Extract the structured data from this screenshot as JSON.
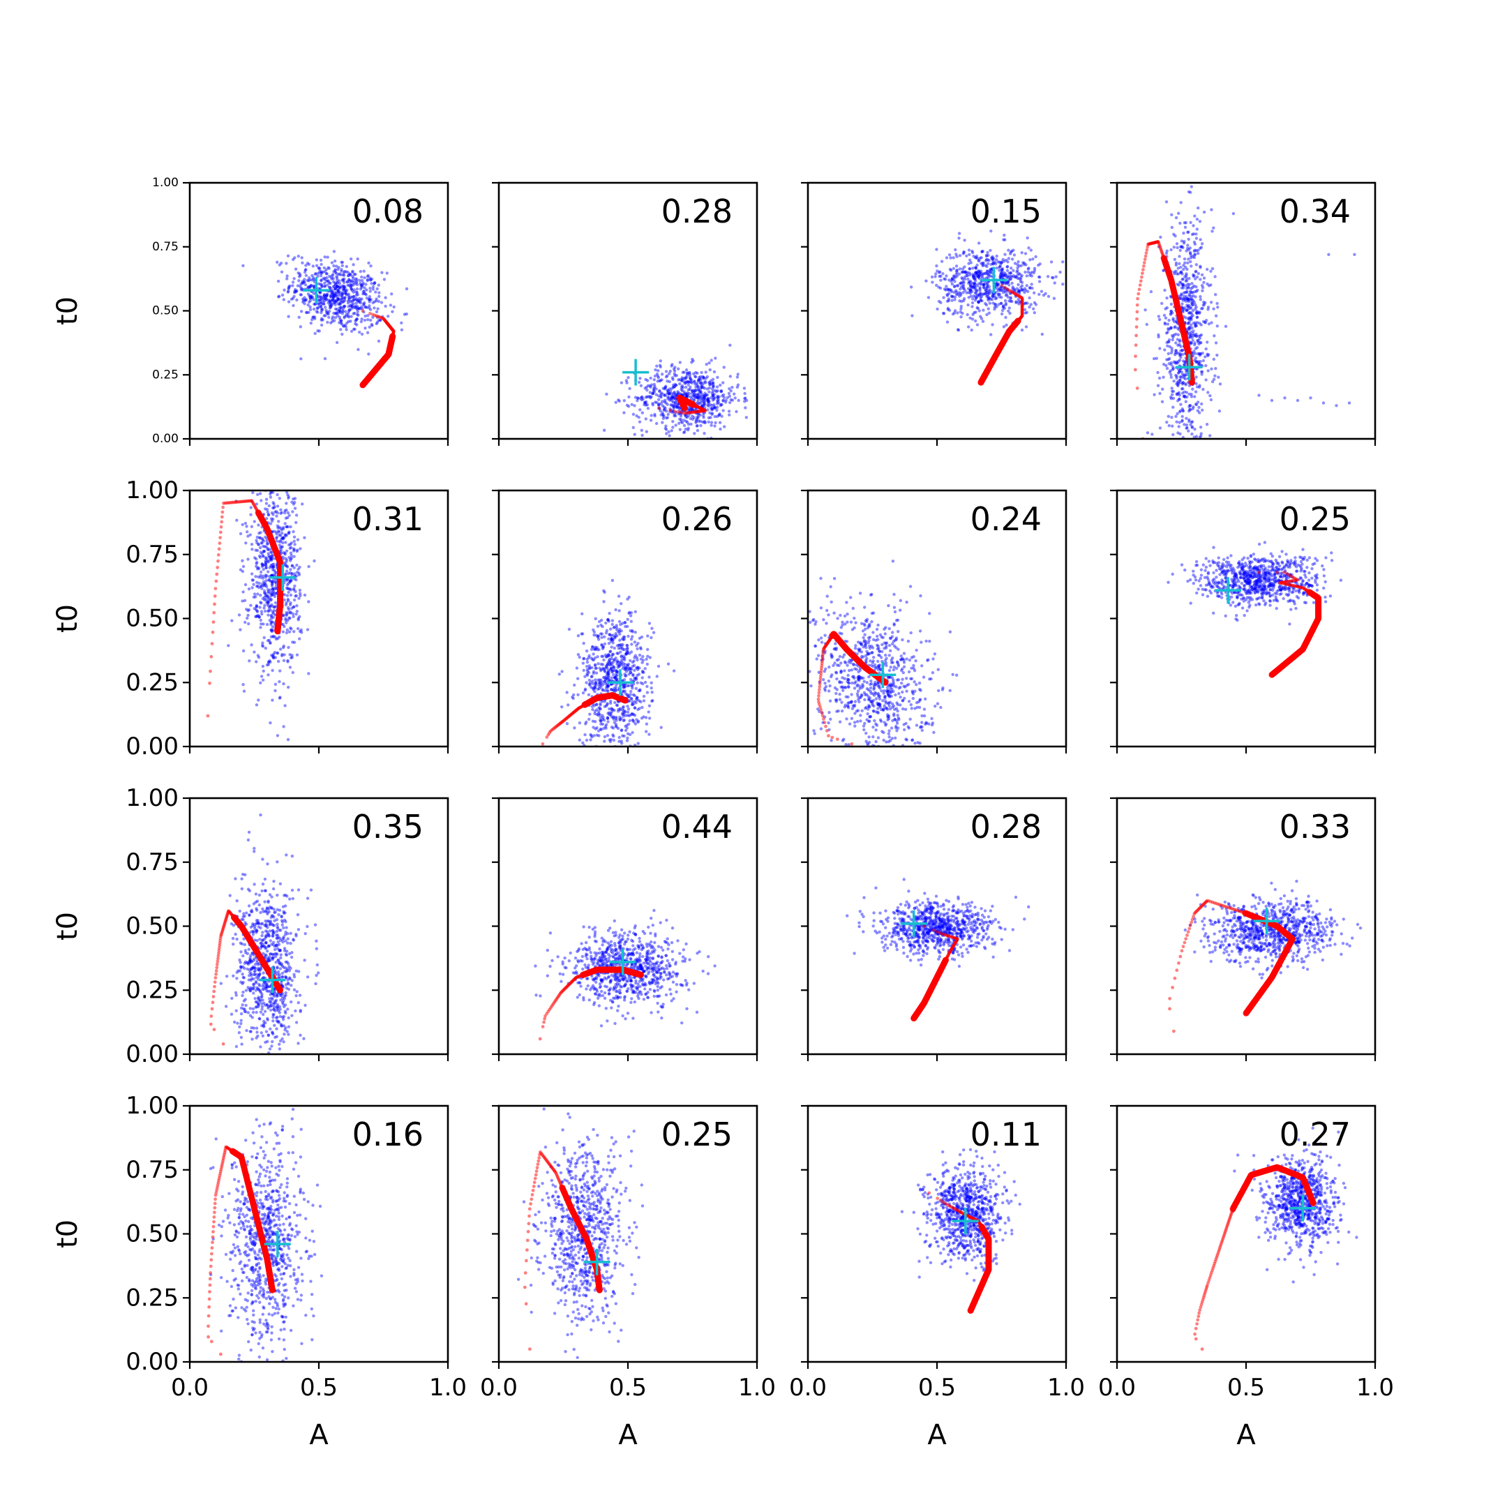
{
  "chart_data": {
    "type": "scatter",
    "grid": false,
    "rows": 4,
    "cols": 4,
    "xlabel": "A",
    "ylabel": "t0",
    "xlim": [
      0,
      1
    ],
    "ylim": [
      0,
      1
    ],
    "xticks": [
      "0.0",
      "0.5",
      "1.0"
    ],
    "yticks": [
      "0.00",
      "0.25",
      "0.50",
      "0.75",
      "1.00"
    ],
    "colors": {
      "samples": "#0000ff",
      "trajectory": "#ff0000",
      "marker": "#17becf",
      "axes": "#000000"
    },
    "panels": [
      {
        "value": "0.08",
        "marker": [
          0.49,
          0.58
        ],
        "cloud": {
          "cx": 0.57,
          "cy": 0.56,
          "sx": 0.09,
          "sy": 0.07,
          "rho": -0.3,
          "n": 700
        },
        "path": [
          [
            0.67,
            0.5
          ],
          [
            0.75,
            0.47
          ],
          [
            0.79,
            0.42
          ],
          [
            0.77,
            0.33
          ],
          [
            0.67,
            0.21
          ]
        ]
      },
      {
        "value": "0.28",
        "marker": [
          0.53,
          0.26
        ],
        "cloud": {
          "cx": 0.73,
          "cy": 0.16,
          "sx": 0.1,
          "sy": 0.06,
          "rho": 0,
          "n": 700
        },
        "path": [
          [
            0.62,
            0.12
          ],
          [
            0.72,
            0.1
          ],
          [
            0.8,
            0.11
          ],
          [
            0.74,
            0.14
          ],
          [
            0.7,
            0.16
          ],
          [
            0.72,
            0.12
          ]
        ]
      },
      {
        "value": "0.15",
        "marker": [
          0.72,
          0.62
        ],
        "cloud": {
          "cx": 0.7,
          "cy": 0.61,
          "sx": 0.1,
          "sy": 0.07,
          "rho": 0,
          "n": 700
        },
        "path": [
          [
            0.72,
            0.62
          ],
          [
            0.78,
            0.58
          ],
          [
            0.83,
            0.55
          ],
          [
            0.83,
            0.48
          ],
          [
            0.78,
            0.42
          ],
          [
            0.73,
            0.33
          ],
          [
            0.67,
            0.22
          ]
        ]
      },
      {
        "value": "0.34",
        "marker": [
          0.28,
          0.28
        ],
        "cloud": {
          "cx": 0.27,
          "cy": 0.4,
          "sx": 0.05,
          "sy": 0.22,
          "rho": 0,
          "n": 800
        },
        "path": [
          [
            0.1,
            0.0
          ],
          [
            0.07,
            0.28
          ],
          [
            0.08,
            0.55
          ],
          [
            0.12,
            0.76
          ],
          [
            0.16,
            0.77
          ],
          [
            0.21,
            0.62
          ],
          [
            0.25,
            0.45
          ],
          [
            0.28,
            0.32
          ],
          [
            0.29,
            0.22
          ]
        ],
        "extra": [
          [
            0.55,
            0.17
          ],
          [
            0.6,
            0.15
          ],
          [
            0.65,
            0.16
          ],
          [
            0.7,
            0.15
          ],
          [
            0.75,
            0.16
          ],
          [
            0.8,
            0.14
          ],
          [
            0.85,
            0.13
          ],
          [
            0.9,
            0.14
          ],
          [
            0.82,
            0.72
          ],
          [
            0.92,
            0.72
          ]
        ]
      },
      {
        "value": "0.31",
        "marker": [
          0.36,
          0.66
        ],
        "cloud": {
          "cx": 0.33,
          "cy": 0.66,
          "sx": 0.05,
          "sy": 0.18,
          "rho": 0,
          "n": 800
        },
        "path": [
          [
            0.07,
            0.12
          ],
          [
            0.08,
            0.3
          ],
          [
            0.1,
            0.62
          ],
          [
            0.13,
            0.95
          ],
          [
            0.24,
            0.96
          ],
          [
            0.3,
            0.85
          ],
          [
            0.35,
            0.72
          ],
          [
            0.35,
            0.55
          ],
          [
            0.34,
            0.45
          ]
        ]
      },
      {
        "value": "0.26",
        "marker": [
          0.47,
          0.25
        ],
        "cloud": {
          "cx": 0.45,
          "cy": 0.25,
          "sx": 0.07,
          "sy": 0.13,
          "rho": 0,
          "n": 800
        },
        "path": [
          [
            0.17,
            0.01
          ],
          [
            0.2,
            0.06
          ],
          [
            0.25,
            0.1
          ],
          [
            0.31,
            0.15
          ],
          [
            0.38,
            0.19
          ],
          [
            0.44,
            0.2
          ],
          [
            0.49,
            0.18
          ]
        ]
      },
      {
        "value": "0.24",
        "marker": [
          0.29,
          0.28
        ],
        "cloud": {
          "cx": 0.25,
          "cy": 0.26,
          "sx": 0.11,
          "sy": 0.15,
          "rho": -0.2,
          "n": 800
        },
        "path": [
          [
            0.17,
            0.01
          ],
          [
            0.08,
            0.04
          ],
          [
            0.04,
            0.18
          ],
          [
            0.06,
            0.38
          ],
          [
            0.1,
            0.44
          ],
          [
            0.15,
            0.38
          ],
          [
            0.22,
            0.31
          ],
          [
            0.3,
            0.25
          ]
        ]
      },
      {
        "value": "0.25",
        "marker": [
          0.43,
          0.61
        ],
        "cloud": {
          "cx": 0.55,
          "cy": 0.65,
          "sx": 0.12,
          "sy": 0.05,
          "rho": 0,
          "n": 800
        },
        "path": [
          [
            0.55,
            0.68
          ],
          [
            0.65,
            0.68
          ],
          [
            0.7,
            0.65
          ],
          [
            0.63,
            0.64
          ],
          [
            0.72,
            0.62
          ],
          [
            0.78,
            0.58
          ],
          [
            0.78,
            0.5
          ],
          [
            0.72,
            0.38
          ],
          [
            0.6,
            0.28
          ]
        ]
      },
      {
        "value": "0.35",
        "marker": [
          0.32,
          0.29
        ],
        "cloud": {
          "cx": 0.3,
          "cy": 0.33,
          "sx": 0.06,
          "sy": 0.16,
          "rho": 0,
          "n": 800
        },
        "path": [
          [
            0.13,
            0.04
          ],
          [
            0.08,
            0.12
          ],
          [
            0.1,
            0.3
          ],
          [
            0.12,
            0.46
          ],
          [
            0.15,
            0.56
          ],
          [
            0.2,
            0.5
          ],
          [
            0.26,
            0.4
          ],
          [
            0.32,
            0.3
          ],
          [
            0.35,
            0.25
          ]
        ]
      },
      {
        "value": "0.44",
        "marker": [
          0.48,
          0.36
        ],
        "cloud": {
          "cx": 0.5,
          "cy": 0.34,
          "sx": 0.11,
          "sy": 0.07,
          "rho": 0,
          "n": 800
        },
        "path": [
          [
            0.16,
            0.06
          ],
          [
            0.18,
            0.15
          ],
          [
            0.24,
            0.24
          ],
          [
            0.3,
            0.3
          ],
          [
            0.38,
            0.33
          ],
          [
            0.48,
            0.33
          ],
          [
            0.55,
            0.31
          ]
        ],
        "extra": [
          [
            0.42,
            0.13
          ],
          [
            0.45,
            0.12
          ],
          [
            0.48,
            0.15
          ],
          [
            0.5,
            0.16
          ],
          [
            0.52,
            0.14
          ],
          [
            0.46,
            0.17
          ]
        ]
      },
      {
        "value": "0.28",
        "marker": [
          0.41,
          0.51
        ],
        "cloud": {
          "cx": 0.5,
          "cy": 0.49,
          "sx": 0.11,
          "sy": 0.05,
          "rho": 0,
          "n": 800
        },
        "path": [
          [
            0.45,
            0.5
          ],
          [
            0.52,
            0.47
          ],
          [
            0.58,
            0.45
          ],
          [
            0.55,
            0.4
          ],
          [
            0.5,
            0.3
          ],
          [
            0.45,
            0.2
          ],
          [
            0.41,
            0.14
          ]
        ]
      },
      {
        "value": "0.33",
        "marker": [
          0.58,
          0.52
        ],
        "cloud": {
          "cx": 0.6,
          "cy": 0.48,
          "sx": 0.12,
          "sy": 0.06,
          "rho": 0,
          "n": 800
        },
        "path": [
          [
            0.22,
            0.09
          ],
          [
            0.2,
            0.2
          ],
          [
            0.25,
            0.4
          ],
          [
            0.3,
            0.55
          ],
          [
            0.35,
            0.6
          ],
          [
            0.5,
            0.55
          ],
          [
            0.62,
            0.5
          ],
          [
            0.68,
            0.45
          ],
          [
            0.6,
            0.3
          ],
          [
            0.5,
            0.16
          ]
        ]
      },
      {
        "value": "0.16",
        "marker": [
          0.34,
          0.46
        ],
        "cloud": {
          "cx": 0.3,
          "cy": 0.47,
          "sx": 0.07,
          "sy": 0.2,
          "rho": 0,
          "n": 800
        },
        "path": [
          [
            0.12,
            0.03
          ],
          [
            0.07,
            0.1
          ],
          [
            0.08,
            0.35
          ],
          [
            0.1,
            0.65
          ],
          [
            0.14,
            0.84
          ],
          [
            0.2,
            0.8
          ],
          [
            0.25,
            0.6
          ],
          [
            0.3,
            0.4
          ],
          [
            0.32,
            0.28
          ]
        ]
      },
      {
        "value": "0.25",
        "marker": [
          0.38,
          0.39
        ],
        "cloud": {
          "cx": 0.33,
          "cy": 0.5,
          "sx": 0.08,
          "sy": 0.17,
          "rho": 0,
          "n": 800
        },
        "path": [
          [
            0.12,
            0.05
          ],
          [
            0.1,
            0.3
          ],
          [
            0.12,
            0.6
          ],
          [
            0.16,
            0.82
          ],
          [
            0.22,
            0.74
          ],
          [
            0.28,
            0.6
          ],
          [
            0.34,
            0.48
          ],
          [
            0.38,
            0.36
          ],
          [
            0.39,
            0.28
          ]
        ]
      },
      {
        "value": "0.11",
        "marker": [
          0.61,
          0.55
        ],
        "cloud": {
          "cx": 0.61,
          "cy": 0.58,
          "sx": 0.07,
          "sy": 0.09,
          "rho": 0,
          "n": 800
        },
        "path": [
          [
            0.47,
            0.66
          ],
          [
            0.53,
            0.62
          ],
          [
            0.6,
            0.58
          ],
          [
            0.66,
            0.55
          ],
          [
            0.7,
            0.48
          ],
          [
            0.7,
            0.36
          ],
          [
            0.63,
            0.2
          ]
        ]
      },
      {
        "value": "0.27",
        "marker": [
          0.72,
          0.6
        ],
        "cloud": {
          "cx": 0.71,
          "cy": 0.62,
          "sx": 0.07,
          "sy": 0.09,
          "rho": 0,
          "n": 800
        },
        "path": [
          [
            0.33,
            0.05
          ],
          [
            0.3,
            0.1
          ],
          [
            0.32,
            0.2
          ],
          [
            0.35,
            0.3
          ],
          [
            0.4,
            0.45
          ],
          [
            0.45,
            0.6
          ],
          [
            0.52,
            0.73
          ],
          [
            0.62,
            0.76
          ],
          [
            0.72,
            0.72
          ],
          [
            0.76,
            0.62
          ]
        ]
      }
    ]
  }
}
